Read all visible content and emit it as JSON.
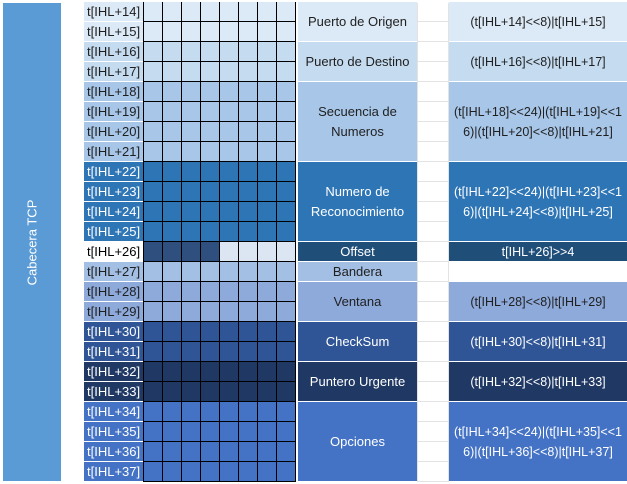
{
  "side_label": "Cabecera TCP",
  "fields": [
    {
      "name": "Puerto de Origen",
      "expr": "(t[IHL+14]<<8)|t[IHL+15]",
      "bytes": [
        "t[IHL+14]",
        "t[IHL+15]"
      ],
      "label_color": "#dce9f6",
      "grid_color": "#dce9f6",
      "field_color": "#dce9f6",
      "expr_color": "#dce9f6",
      "dark": false
    },
    {
      "name": "Puerto de Destino",
      "expr": "(t[IHL+16]<<8)|t[IHL+17]",
      "bytes": [
        "t[IHL+16]",
        "t[IHL+17]"
      ],
      "label_color": "#c5dbf0",
      "grid_color": "#c5dbf0",
      "field_color": "#c5dbf0",
      "expr_color": "#c5dbf0",
      "dark": false
    },
    {
      "name": "Secuencia de Numeros",
      "expr": "(t[IHL+18]<<24)|(t[IHL+19]<<16)|(t[IHL+20]<<8)|t[IHL+21]",
      "bytes": [
        "t[IHL+18]",
        "t[IHL+19]",
        "t[IHL+20]",
        "t[IHL+21]"
      ],
      "label_color": "#a7c6e8",
      "grid_color": "#a7c6e8",
      "field_color": "#a7c6e8",
      "expr_color": "#a7c6e8",
      "dark": false
    },
    {
      "name": "Numero de Reconocimiento",
      "expr": "(t[IHL+22]<<24)|(t[IHL+23]<<16)|(t[IHL+24]<<8)|t[IHL+25]",
      "bytes": [
        "t[IHL+22]",
        "t[IHL+23]",
        "t[IHL+24]",
        "t[IHL+25]"
      ],
      "label_color": "#2e75b6",
      "grid_color": "#2e75b6",
      "field_color": "#2e75b6",
      "expr_color": "#2e75b6",
      "dark": true
    },
    {
      "name": "Offset",
      "expr": "t[IHL+26]>>4",
      "bytes": [
        "t[IHL+26]"
      ],
      "label_color": "#ffffff",
      "grid_color": "#2f4f7f",
      "grid_light_color": "#dce6f2",
      "grid_dark_bits": 4,
      "field_color": "#1f4e79",
      "expr_color": "#1f4e79",
      "dark": true,
      "label_text_color": "#000000"
    },
    {
      "name": "Bandera",
      "expr": "",
      "bytes": [
        "t[IHL+27]"
      ],
      "label_color": "#a4bfe4",
      "grid_color": "#a4bfe4",
      "field_color": "#a4bfe4",
      "expr_color": "#ffffff",
      "dark": false
    },
    {
      "name": "Ventana",
      "expr": "(t[IHL+28]<<8)|t[IHL+29]",
      "bytes": [
        "t[IHL+28]",
        "t[IHL+29]"
      ],
      "label_color": "#8eaadb",
      "grid_color": "#8eaadb",
      "field_color": "#8eaadb",
      "expr_color": "#8eaadb",
      "dark": false
    },
    {
      "name": "CheckSum",
      "expr": "(t[IHL+30]<<8)|t[IHL+31]",
      "bytes": [
        "t[IHL+30]",
        "t[IHL+31]"
      ],
      "label_color": "#2f5597",
      "grid_color": "#2f5597",
      "field_color": "#2f5597",
      "expr_color": "#2f5597",
      "dark": true
    },
    {
      "name": "Puntero Urgente",
      "expr": "(t[IHL+32]<<8)|t[IHL+33]",
      "bytes": [
        "t[IHL+32]",
        "t[IHL+33]"
      ],
      "label_color": "#1f3864",
      "grid_color": "#1f3864",
      "field_color": "#1f3864",
      "expr_color": "#1f3864",
      "dark": true
    },
    {
      "name": "Opciones",
      "expr": "(t[IHL+34]<<24)|(t[IHL+35]<<16)|(t[IHL+36]<<8)|t[IHL+37]",
      "bytes": [
        "t[IHL+34]",
        "t[IHL+35]",
        "t[IHL+36]",
        "t[IHL+37]"
      ],
      "label_color": "#4472c4",
      "grid_color": "#4472c4",
      "field_color": "#4472c4",
      "expr_color": "#4472c4",
      "dark": true
    }
  ]
}
